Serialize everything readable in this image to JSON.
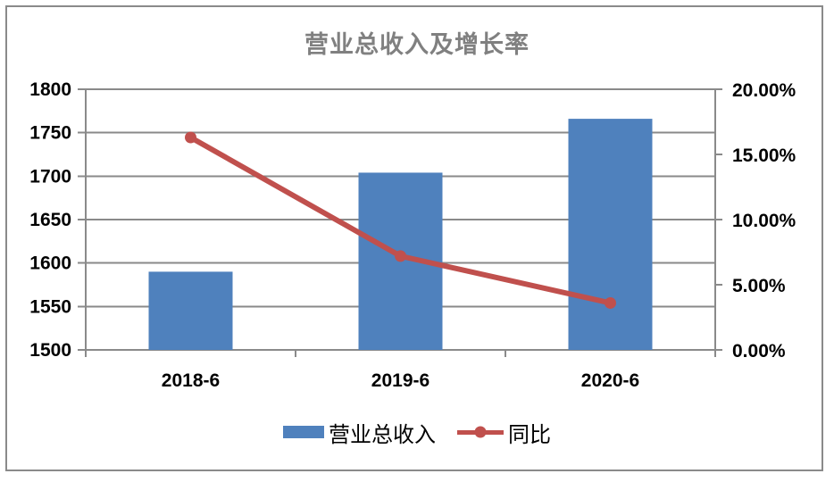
{
  "chart_data": {
    "type": "bar+line combo",
    "title": "营业总收入及增长率",
    "categories": [
      "2018-6",
      "2019-6",
      "2020-6"
    ],
    "series": [
      {
        "name": "营业总收入",
        "type": "bar",
        "axis": "left",
        "values": [
          1590,
          1704,
          1766
        ],
        "color": "#4F81BD"
      },
      {
        "name": "同比",
        "type": "line",
        "axis": "right",
        "values": [
          16.3,
          7.2,
          3.6
        ],
        "unit": "%",
        "color": "#C0504D"
      }
    ],
    "left_axis": {
      "min": 1500,
      "max": 1800,
      "step": 50,
      "tick_labels": [
        "1800",
        "1750",
        "1700",
        "1650",
        "1600",
        "1550",
        "1500"
      ]
    },
    "right_axis": {
      "min": 0,
      "max": 20,
      "step": 5,
      "tick_labels": [
        "20.00%",
        "15.00%",
        "10.00%",
        "5.00%",
        "0.00%"
      ]
    },
    "grid": true,
    "legend_position": "bottom",
    "colors": {
      "grid": "#8a8a8a",
      "frame_border": "#8a8a8a",
      "title": "#808080",
      "axis_text": "#000000",
      "background": "#ffffff"
    }
  }
}
